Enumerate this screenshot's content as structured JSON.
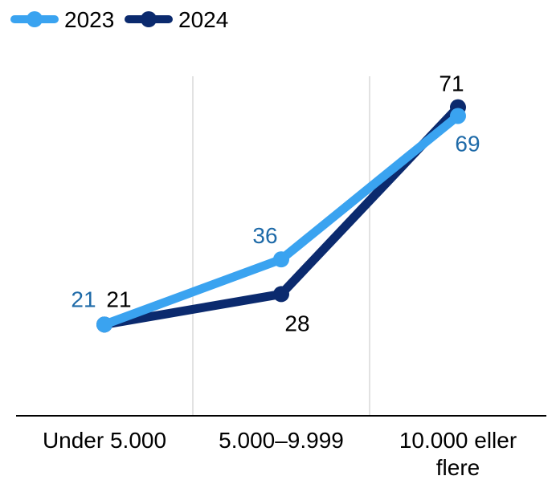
{
  "chart_data": {
    "type": "line",
    "categories": [
      "Under 5.000",
      "5.000–9.999",
      "10.000 eller flere"
    ],
    "series": [
      {
        "name": "2023",
        "color": "#3aa3f0",
        "label_color": "#1e6aa8",
        "values": [
          21,
          36,
          69
        ]
      },
      {
        "name": "2024",
        "color": "#0b2a6e",
        "label_color": "#000000",
        "values": [
          21,
          28,
          71
        ]
      }
    ],
    "ylim": [
      0,
      75
    ],
    "grid": "vertical",
    "legend": "top-left"
  }
}
